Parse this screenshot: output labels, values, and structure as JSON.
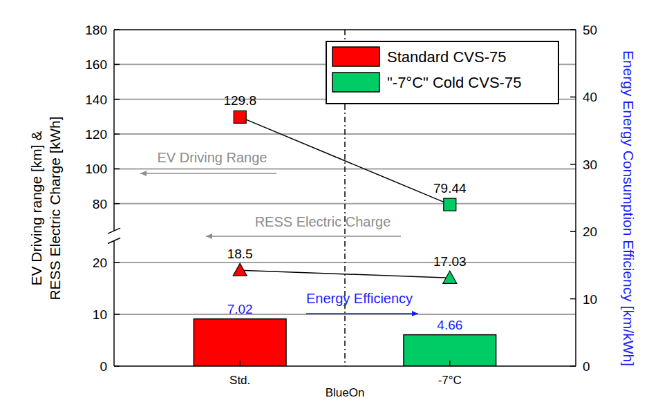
{
  "chart_data": {
    "type": "combo",
    "categories": [
      "Std.",
      "-7°C"
    ],
    "x_label": "BlueOn",
    "y_label": [
      "EV Driving range [km] &",
      "RESS Electric Charge [kWh]"
    ],
    "y2_label": "Energy Energy Consumption Efficiency [km/kWh]",
    "ylim": [
      0,
      180
    ],
    "y_break": [
      25,
      62
    ],
    "yticks": [
      0,
      10,
      20,
      80,
      100,
      120,
      140,
      160,
      180
    ],
    "y2lim": [
      0,
      50
    ],
    "y2ticks": [
      0,
      10,
      20,
      30,
      40,
      50
    ],
    "grid": true,
    "legend": "upper right",
    "legend_labels": [
      "Standard CVS-75",
      "\"-7°C\" Cold CVS-75"
    ],
    "colors": [
      "#ff0000",
      "#00cc66"
    ],
    "data_labels": true,
    "series": [
      {
        "name": "EV Driving Range",
        "type": "line",
        "marker": "square",
        "color": "#000000",
        "values": [
          129.8,
          79.44
        ]
      },
      {
        "name": "RESS Electric Charge",
        "type": "line",
        "marker": "triangle",
        "color": "#000000",
        "values": [
          18.5,
          17.03
        ]
      },
      {
        "name": "Energy Efficiency",
        "type": "bar",
        "axis": "y2",
        "color": "#1a1aff",
        "values": [
          7.02,
          4.66
        ]
      }
    ]
  }
}
